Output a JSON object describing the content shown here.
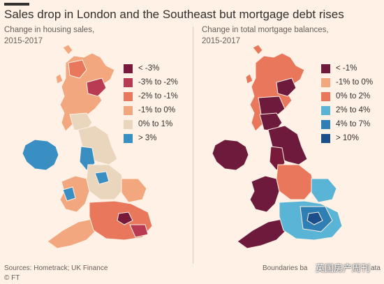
{
  "title": "Sales drop in London and the Southeast but mortgage debt rises",
  "left": {
    "subtitle_line1": "Change in housing sales,",
    "subtitle_line2": "2015-2017",
    "legend": [
      {
        "label": "< -3%",
        "color": "#7a1a3a"
      },
      {
        "label": "-3% to -2%",
        "color": "#b83a53"
      },
      {
        "label": "-2% to -1%",
        "color": "#e8775c"
      },
      {
        "label": "-1% to 0%",
        "color": "#f2a77e"
      },
      {
        "label": "0% to 1%",
        "color": "#ead5bd"
      },
      {
        "label": "> 3%",
        "color": "#3a8fc2"
      }
    ]
  },
  "right": {
    "subtitle_line1": "Change in total mortgage balances,",
    "subtitle_line2": "2015-2017",
    "legend": [
      {
        "label": "< -1%",
        "color": "#6e1a3c"
      },
      {
        "label": "-1% to 0%",
        "color": "#f2a77e"
      },
      {
        "label": "0% to 2%",
        "color": "#e8775c"
      },
      {
        "label": "2% to 4%",
        "color": "#5ab4d6"
      },
      {
        "label": "4% to 7%",
        "color": "#2f7fb5"
      },
      {
        "label": "> 10%",
        "color": "#1c4f8a"
      }
    ]
  },
  "footer": {
    "sources": "Sources: Hometrack; UK Finance",
    "copyright": "© FT",
    "boundaries": "Boundaries ba",
    "boundaries_end": "ata"
  },
  "watermark": "英国房产周刊",
  "colors": {
    "background": "#fff1e5",
    "text": "#33302e"
  }
}
